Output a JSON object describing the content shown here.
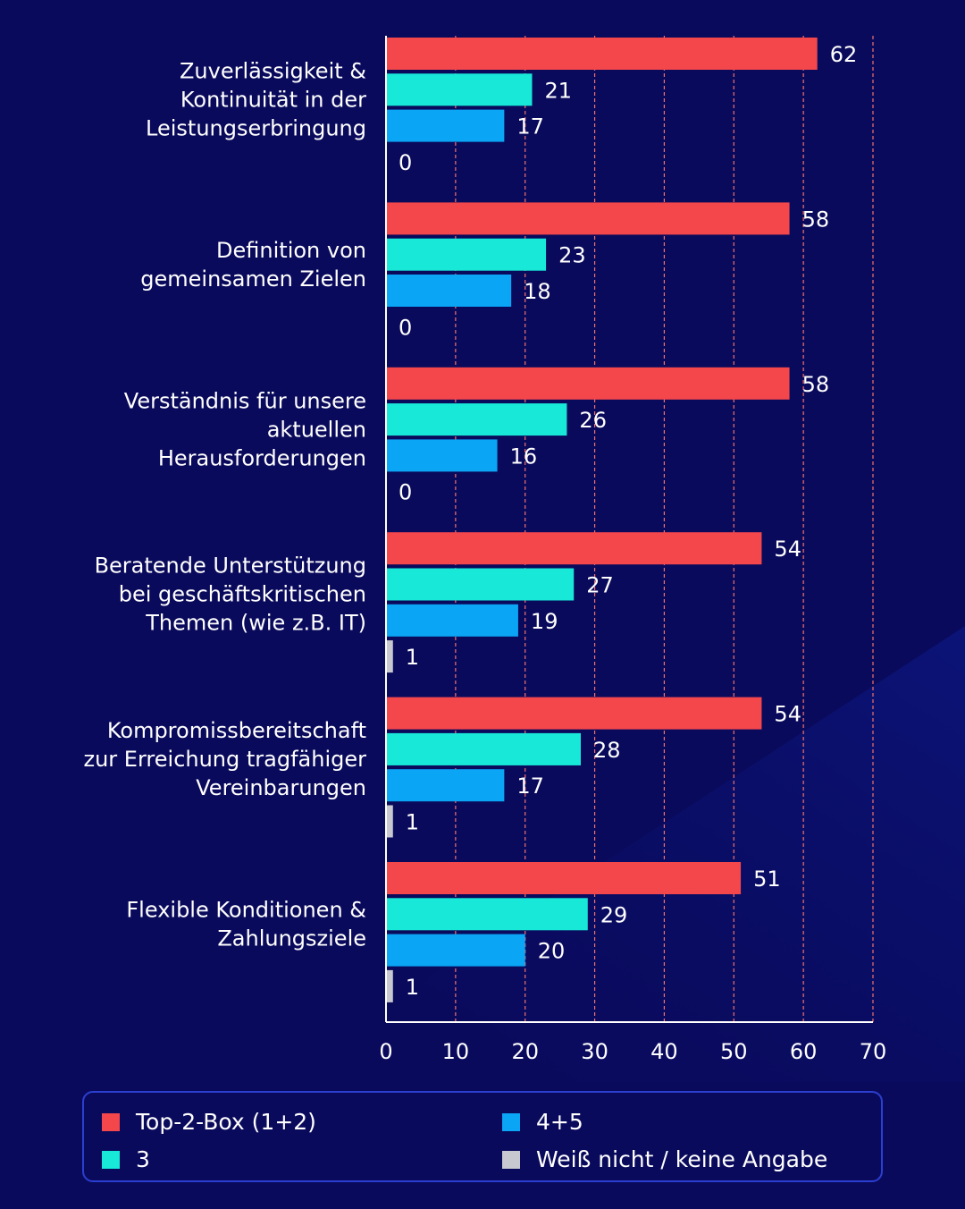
{
  "colors": {
    "background": "#0a0a5c",
    "top2": "#f4474c",
    "three": "#17e8d8",
    "fourfive": "#0aa5f5",
    "unknown": "#c8c8d0",
    "grid": "#f0716e",
    "axis": "#ffffff"
  },
  "chart_data": {
    "type": "bar",
    "orientation": "horizontal",
    "categories": [
      [
        "Zuverlässigkeit &",
        "Kontinuität in der",
        "Leistungserbringung"
      ],
      [
        "Definition von",
        "gemeinsamen Zielen"
      ],
      [
        "Verständnis für unsere",
        "aktuellen",
        "Herausforderungen"
      ],
      [
        "Beratende Unterstützung",
        "bei geschäftskritischen",
        "Themen (wie z.B. IT)"
      ],
      [
        "Kompromissbereitschaft",
        "zur Erreichung tragfähiger",
        "Vereinbarungen"
      ],
      [
        "Flexible Konditionen &",
        "Zahlungsziele"
      ]
    ],
    "series": [
      {
        "name": "Top-2-Box (1+2)",
        "color": "#f4474c",
        "values": [
          62,
          58,
          58,
          54,
          54,
          51
        ]
      },
      {
        "name": "3",
        "color": "#17e8d8",
        "values": [
          21,
          23,
          26,
          27,
          28,
          29
        ]
      },
      {
        "name": "4+5",
        "color": "#0aa5f5",
        "values": [
          17,
          18,
          16,
          19,
          17,
          20
        ]
      },
      {
        "name": "Weiß nicht / keine Angabe",
        "color": "#c8c8d0",
        "values": [
          0,
          0,
          0,
          1,
          1,
          1
        ]
      }
    ],
    "xlim": [
      0,
      70
    ],
    "xticks": [
      0,
      10,
      20,
      30,
      40,
      50,
      60,
      70
    ],
    "grid": true,
    "legend_position": "bottom"
  },
  "legend": {
    "items": [
      {
        "label": "Top-2-Box (1+2)",
        "color": "#f4474c"
      },
      {
        "label": "3",
        "color": "#17e8d8"
      },
      {
        "label": "4+5",
        "color": "#0aa5f5"
      },
      {
        "label": "Weiß nicht / keine Angabe",
        "color": "#c8c8d0"
      }
    ]
  }
}
